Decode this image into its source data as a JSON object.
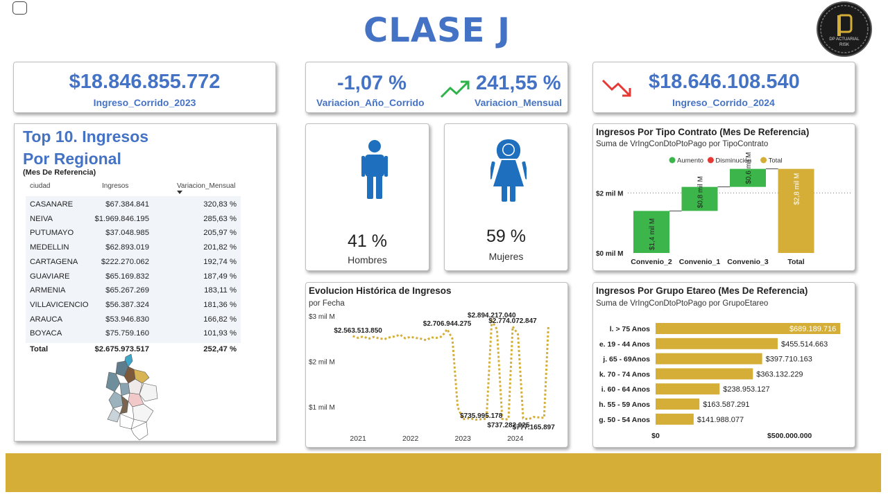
{
  "title": "CLASE J",
  "logo": {
    "text_top": "DP ACTUARIAL",
    "text_bottom": "RISK"
  },
  "kpi": {
    "ingreso_2023": {
      "value": "$18.846.855.772",
      "label": "Ingreso_Corrido_2023"
    },
    "variacion_anio": {
      "value": "-1,07 %",
      "label": "Variacion_Año_Corrido"
    },
    "variacion_mensual": {
      "value": "241,55 %",
      "label": "Variacion_Mensual"
    },
    "ingreso_2024": {
      "value": "$18.646.108.540",
      "label": "Ingreso_Corrido_2024"
    }
  },
  "top10": {
    "title_line1": "Top 10. Ingresos",
    "title_line2": "Por Regional",
    "subtitle": "(Mes De Referencia)",
    "headers": [
      "ciudad",
      "Ingresos",
      "Variacion_Mensual"
    ],
    "rows": [
      {
        "ciudad": "CASANARE",
        "ingresos": "$67.384.841",
        "variacion": "320,83 %"
      },
      {
        "ciudad": "NEIVA",
        "ingresos": "$1.969.846.195",
        "variacion": "285,63 %"
      },
      {
        "ciudad": "PUTUMAYO",
        "ingresos": "$37.048.985",
        "variacion": "205,97 %"
      },
      {
        "ciudad": "MEDELLIN",
        "ingresos": "$62.893.019",
        "variacion": "201,82 %"
      },
      {
        "ciudad": "CARTAGENA",
        "ingresos": "$222.270.062",
        "variacion": "192,74 %"
      },
      {
        "ciudad": "GUAVIARE",
        "ingresos": "$65.169.832",
        "variacion": "187,49 %"
      },
      {
        "ciudad": "ARMENIA",
        "ingresos": "$65.267.269",
        "variacion": "183,11 %"
      },
      {
        "ciudad": "VILLAVICENCIO",
        "ingresos": "$56.387.324",
        "variacion": "181,36 %"
      },
      {
        "ciudad": "ARAUCA",
        "ingresos": "$53.946.830",
        "variacion": "166,82 %"
      },
      {
        "ciudad": "BOYACA",
        "ingresos": "$75.759.160",
        "variacion": "101,93 %"
      }
    ],
    "total": {
      "label": "Total",
      "ingresos": "$2.675.973.517",
      "variacion": "252,47 %"
    }
  },
  "gender": {
    "hombres": {
      "pct": "41 %",
      "label": "Hombres"
    },
    "mujeres": {
      "pct": "59 %",
      "label": "Mujeres"
    }
  },
  "colors": {
    "accent": "#4472c4",
    "gold": "#d4ae37",
    "green": "#3cb54a",
    "red": "#e53935",
    "male": "#1f6fbf",
    "female": "#1f6fbf"
  },
  "icons": {
    "trend_up": "trend-up-icon",
    "trend_down": "trend-down-icon",
    "male": "man-icon",
    "female": "woman-icon"
  },
  "chart_data": [
    {
      "type": "waterfall",
      "title": "Ingresos Por Tipo Contrato (Mes De Referencia)",
      "subtitle": "Suma de VrIngConDtoPtoPago por TipoContrato",
      "legend": [
        "Aumento",
        "Disminución",
        "Total"
      ],
      "legend_placement": "top-center",
      "categories": [
        "Convenio_2",
        "Convenio_1",
        "Convenio_3",
        "Total"
      ],
      "values": [
        1.4,
        0.8,
        0.6,
        2.8
      ],
      "data_labels": [
        "$1,4 mil M",
        "$0,8 mil M",
        "$0,6 mil M",
        "$2,8 mil M"
      ],
      "y_ticks": [
        "$0 mil M",
        "$2 mil M"
      ],
      "ylim": [
        0,
        3.0
      ]
    },
    {
      "type": "line",
      "title": "Evolucion Histórica de Ingresos",
      "subtitle": "por Fecha",
      "x_ticks": [
        "2021",
        "2022",
        "2023",
        "2024"
      ],
      "y_ticks": [
        "$1 mil M",
        "$2 mil M",
        "$3 mil M"
      ],
      "ylim": [
        0.5,
        3.0
      ],
      "xlim": [
        2020.85,
        2024.9
      ],
      "series": [
        {
          "x": [
            2020.95,
            2021.05,
            2021.15,
            2021.25,
            2021.35,
            2021.45,
            2021.55,
            2021.65,
            2021.75,
            2021.85,
            2021.95,
            2022.05,
            2022.15,
            2022.25,
            2022.35,
            2022.45,
            2022.55,
            2022.65,
            2022.75,
            2022.85,
            2022.95,
            2023.05,
            2023.15,
            2023.22,
            2023.3,
            2023.4,
            2023.5,
            2023.6,
            2023.7,
            2023.8,
            2023.85,
            2023.92,
            2024.0,
            2024.1,
            2024.2,
            2024.3,
            2024.4,
            2024.5,
            2024.6,
            2024.68
          ],
          "values": [
            2.56,
            2.52,
            2.55,
            2.5,
            2.54,
            2.51,
            2.49,
            2.53,
            2.55,
            2.59,
            2.51,
            2.54,
            2.52,
            2.5,
            2.47,
            2.53,
            2.52,
            2.55,
            2.71,
            2.5,
            1.0,
            0.73,
            0.75,
            0.74,
            0.72,
            0.73,
            0.74,
            2.89,
            2.71,
            0.74,
            0.72,
            0.74,
            2.77,
            2.6,
            0.75,
            0.73,
            0.78,
            0.77,
            0.76,
            2.77
          ]
        }
      ],
      "annotations": [
        {
          "text": "$2.563.513.850",
          "x": 2021.05,
          "y": 2.56
        },
        {
          "text": "$2.706.944.275",
          "x": 2022.75,
          "y": 2.71
        },
        {
          "text": "$2.894.217.040",
          "x": 2023.6,
          "y": 2.89
        },
        {
          "text": "$2.774.072.847",
          "x": 2024.0,
          "y": 2.77
        },
        {
          "text": "$735.995.178",
          "x": 2023.4,
          "y": 0.73
        },
        {
          "text": "$737.282.925",
          "x": 2023.92,
          "y": 0.74
        },
        {
          "text": "$777.165.897",
          "x": 2024.4,
          "y": 0.78
        }
      ],
      "line_style": "dotted",
      "color": "#d4ae37"
    },
    {
      "type": "bar",
      "orientation": "horizontal",
      "title": "Ingresos Por Grupo Etareo (Mes De Referencia)",
      "subtitle": "Suma de VrIngConDtoPtoPago por GrupoEtareo",
      "categories": [
        "l. > 75 Anos",
        "e. 19 - 44 Anos",
        "j. 65 - 69Anos",
        "k. 70 - 74 Anos",
        "i. 60 - 64 Anos",
        "h. 55 - 59 Anos",
        "g. 50 - 54 Anos"
      ],
      "values": [
        689189716,
        455514663,
        397710163,
        363132229,
        238953127,
        163587291,
        141988077
      ],
      "data_labels": [
        "$689.189.716",
        "$455.514.663",
        "$397.710.163",
        "$363.132.229",
        "$238.953.127",
        "$163.587.291",
        "$141.988.077"
      ],
      "x_ticks": [
        "$0",
        "$500.000.000"
      ],
      "xlim": [
        0,
        730000000
      ]
    }
  ]
}
